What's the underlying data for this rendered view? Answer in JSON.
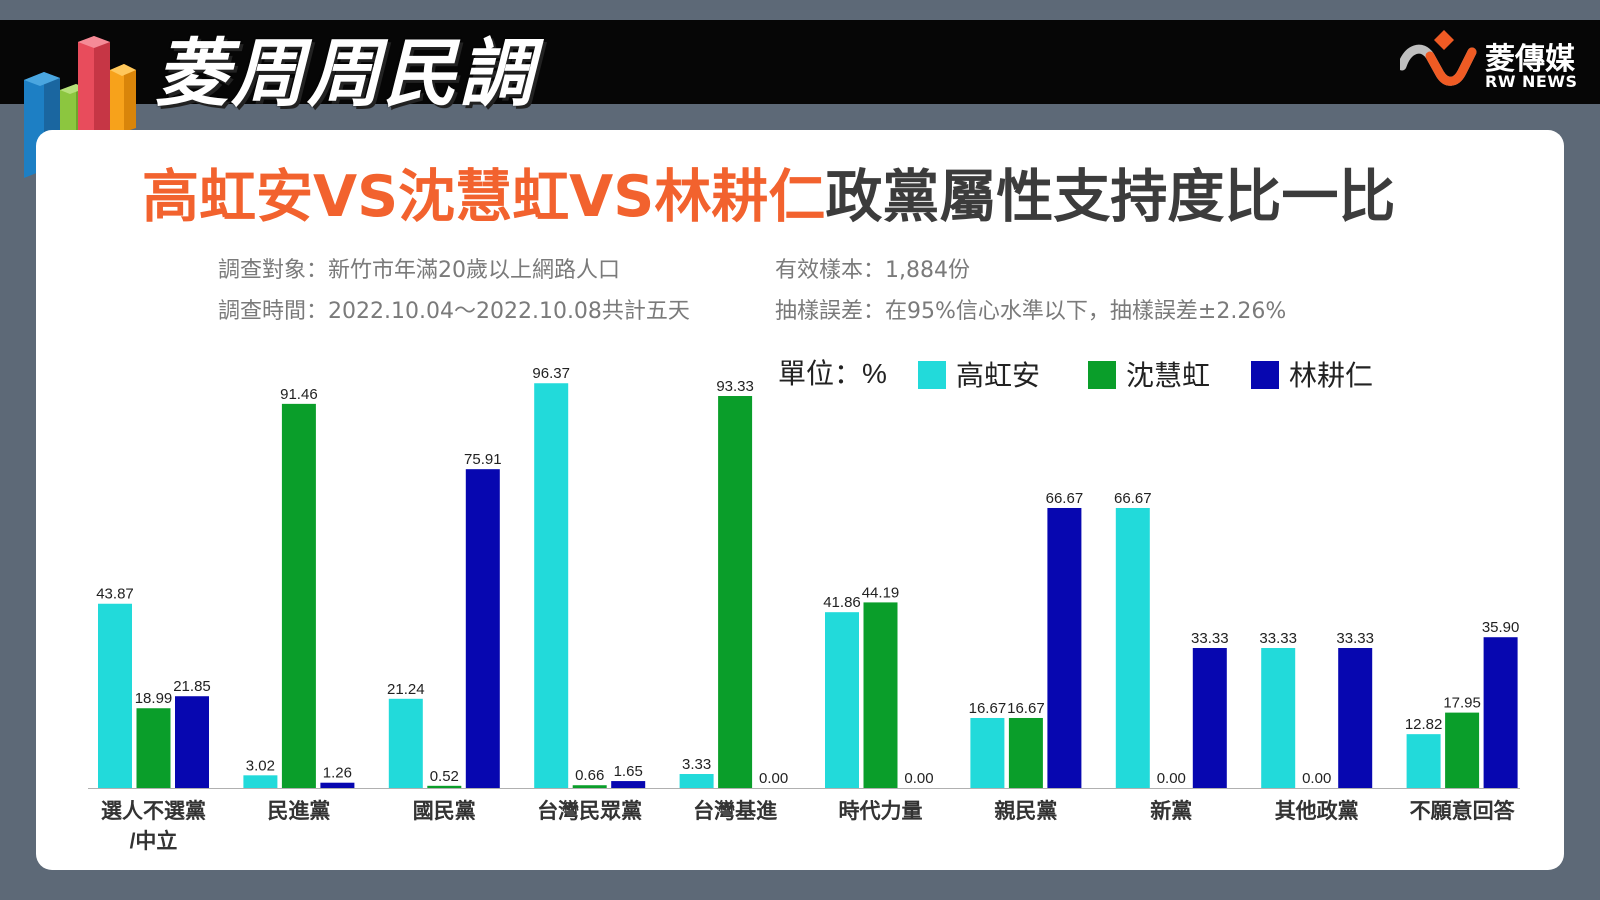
{
  "header": {
    "title": "菱周周民調",
    "brand_name": "菱傳媒",
    "brand_sub": "RW NEWS"
  },
  "subtitle": {
    "highlight": "高虹安VS沈慧虹VS林耕仁",
    "rest": "政黨屬性支持度比一比"
  },
  "survey": {
    "target": "調查對象：新竹市年滿20歲以上網路人口",
    "period": "調查時間：2022.10.04～2022.10.08共計五天",
    "sample": "有效樣本：1,884份",
    "error": "抽樣誤差：在95%信心水準以下，抽樣誤差±2.26%"
  },
  "colors": {
    "高虹安": "#22dada",
    "沈慧虹": "#0a9e2a",
    "林耕仁": "#0707b0",
    "title_highlight": "#f2622e"
  },
  "chart_data": {
    "type": "bar",
    "unit_label": "單位：%",
    "categories": [
      "選人不選黨/中立",
      "民進黨",
      "國民黨",
      "台灣民眾黨",
      "台灣基進",
      "時代力量",
      "親民黨",
      "新黨",
      "其他政黨",
      "不願意回答"
    ],
    "category_lines": [
      [
        "選人不選黨",
        "/中立"
      ],
      [
        "民進黨"
      ],
      [
        "國民黨"
      ],
      [
        "台灣民眾黨"
      ],
      [
        "台灣基進"
      ],
      [
        "時代力量"
      ],
      [
        "親民黨"
      ],
      [
        "新黨"
      ],
      [
        "其他政黨"
      ],
      [
        "不願意回答"
      ]
    ],
    "series": [
      {
        "name": "高虹安",
        "values": [
          43.87,
          3.02,
          21.24,
          96.37,
          3.33,
          41.86,
          16.67,
          66.67,
          33.33,
          12.82
        ]
      },
      {
        "name": "沈慧虹",
        "values": [
          18.99,
          91.46,
          0.52,
          0.66,
          93.33,
          44.19,
          16.67,
          0.0,
          0.0,
          17.95
        ]
      },
      {
        "name": "林耕仁",
        "values": [
          21.85,
          1.26,
          75.91,
          1.65,
          0.0,
          0.0,
          66.67,
          33.33,
          33.33,
          35.9
        ]
      }
    ],
    "ylim": [
      0,
      100
    ],
    "grid": false,
    "legend_position": "top-right"
  }
}
